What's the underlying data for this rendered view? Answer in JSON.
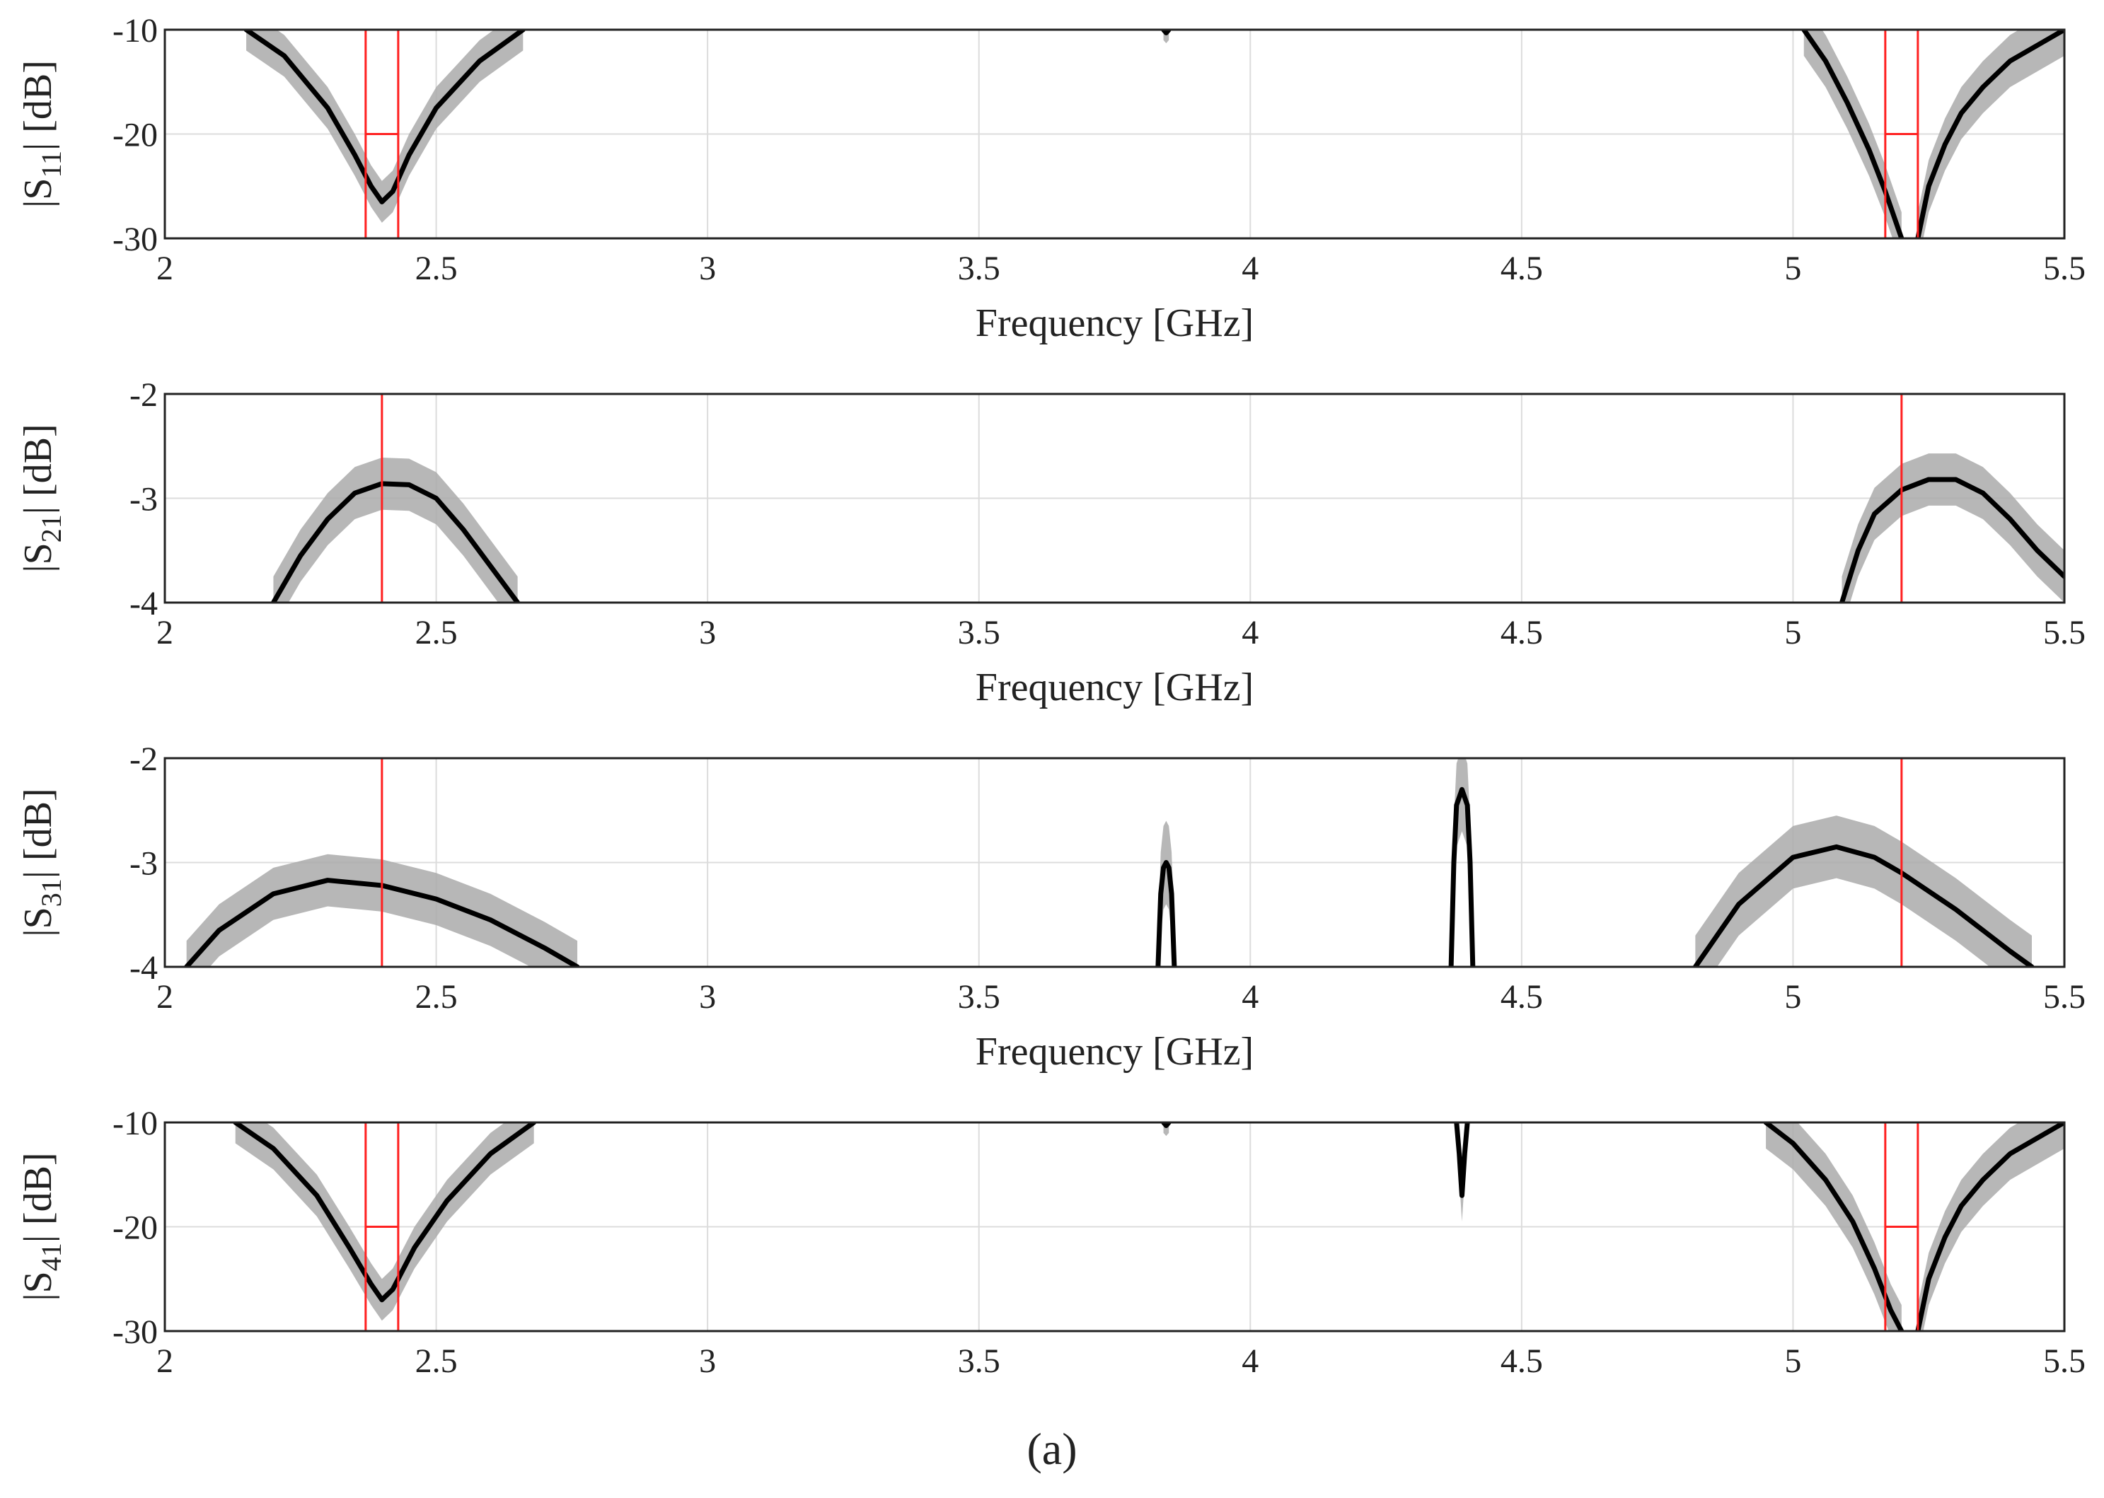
{
  "caption": "(a)",
  "chart_data": [
    {
      "type": "line",
      "id": "s11",
      "ylabel": {
        "pre": "|S",
        "sub": "11",
        "post": "| [dB]"
      },
      "xlabel": "Frequency [GHz]",
      "show_xlabel": true,
      "xlim": [
        2,
        5.5
      ],
      "ylim": [
        -30,
        -10
      ],
      "xticks": [
        2,
        2.5,
        3,
        3.5,
        4,
        4.5,
        5,
        5.5
      ],
      "xtick_labels": [
        "2",
        "2.5",
        "3",
        "3.5",
        "4",
        "4.5",
        "5",
        "5.5"
      ],
      "yticks": [
        -10,
        -20,
        -30
      ],
      "ytick_labels": [
        "-10",
        "-20",
        "-30"
      ],
      "grid": true,
      "series": [
        {
          "name": "mean",
          "band": 2.0,
          "x": [
            2.15,
            2.22,
            2.3,
            2.35,
            2.38,
            2.4,
            2.42,
            2.45,
            2.5,
            2.58,
            2.66
          ],
          "y": [
            -10,
            -12.5,
            -17.5,
            -22,
            -25,
            -26.5,
            -25.5,
            -22,
            -17.5,
            -13,
            -10
          ]
        },
        {
          "name": "mean",
          "band": 2.5,
          "x": [
            5.02,
            5.06,
            5.1,
            5.14,
            5.17,
            5.19,
            5.2
          ],
          "y": [
            -10,
            -13,
            -17,
            -21.5,
            -25.5,
            -28.5,
            -30
          ]
        },
        {
          "name": "mean",
          "band": 2.5,
          "x": [
            5.23,
            5.25,
            5.28,
            5.31,
            5.35,
            5.4,
            5.45,
            5.5
          ],
          "y": [
            -30,
            -25,
            -21,
            -18,
            -15.5,
            -13,
            -11.5,
            -10
          ]
        },
        {
          "name": "mean",
          "band": 1.0,
          "x": [
            3.84,
            3.845,
            3.85
          ],
          "y": [
            -10,
            -10.3,
            -10
          ]
        }
      ],
      "spec_limits": [
        {
          "x": [
            2.37,
            2.37,
            2.43,
            2.43
          ],
          "y": [
            -30,
            -10,
            -10,
            -30
          ]
        },
        {
          "x": [
            2.37,
            2.43
          ],
          "y": [
            -20,
            -20
          ]
        },
        {
          "x": [
            5.17,
            5.17,
            5.23,
            5.23
          ],
          "y": [
            -30,
            -10,
            -10,
            -30
          ]
        },
        {
          "x": [
            5.17,
            5.23
          ],
          "y": [
            -20,
            -20
          ]
        }
      ]
    },
    {
      "type": "line",
      "id": "s21",
      "ylabel": {
        "pre": "|S",
        "sub": "21",
        "post": "| [dB]"
      },
      "xlabel": "Frequency [GHz]",
      "show_xlabel": true,
      "xlim": [
        2,
        5.5
      ],
      "ylim": [
        -4,
        -2
      ],
      "xticks": [
        2,
        2.5,
        3,
        3.5,
        4,
        4.5,
        5,
        5.5
      ],
      "xtick_labels": [
        "2",
        "2.5",
        "3",
        "3.5",
        "4",
        "4.5",
        "5",
        "5.5"
      ],
      "yticks": [
        -2,
        -3,
        -4
      ],
      "ytick_labels": [
        "-2",
        "-3",
        "-4"
      ],
      "grid": true,
      "series": [
        {
          "name": "mean",
          "band": 0.25,
          "x": [
            2.2,
            2.25,
            2.3,
            2.35,
            2.4,
            2.45,
            2.5,
            2.55,
            2.6,
            2.65
          ],
          "y": [
            -4,
            -3.55,
            -3.2,
            -2.95,
            -2.86,
            -2.87,
            -3.0,
            -3.3,
            -3.65,
            -4
          ]
        },
        {
          "name": "mean",
          "band": 0.25,
          "x": [
            5.09,
            5.12,
            5.15,
            5.2,
            5.25,
            5.3,
            5.35,
            5.4,
            5.45,
            5.5
          ],
          "y": [
            -4,
            -3.5,
            -3.15,
            -2.92,
            -2.82,
            -2.82,
            -2.95,
            -3.2,
            -3.5,
            -3.75
          ]
        }
      ],
      "spec_limits": [
        {
          "x": [
            2.4,
            2.4
          ],
          "y": [
            -4,
            -2
          ]
        },
        {
          "x": [
            5.2,
            5.2
          ],
          "y": [
            -4,
            -2
          ]
        }
      ]
    },
    {
      "type": "line",
      "id": "s31",
      "ylabel": {
        "pre": "|S",
        "sub": "31",
        "post": "| [dB]"
      },
      "xlabel": "Frequency [GHz]",
      "show_xlabel": true,
      "xlim": [
        2,
        5.5
      ],
      "ylim": [
        -4,
        -2
      ],
      "xticks": [
        2,
        2.5,
        3,
        3.5,
        4,
        4.5,
        5,
        5.5
      ],
      "xtick_labels": [
        "2",
        "2.5",
        "3",
        "3.5",
        "4",
        "4.5",
        "5",
        "5.5"
      ],
      "yticks": [
        -2,
        -3,
        -4
      ],
      "ytick_labels": [
        "-2",
        "-3",
        "-4"
      ],
      "grid": true,
      "series": [
        {
          "name": "mean",
          "band": 0.25,
          "x": [
            2.04,
            2.1,
            2.2,
            2.3,
            2.4,
            2.5,
            2.6,
            2.7,
            2.76
          ],
          "y": [
            -4,
            -3.65,
            -3.3,
            -3.17,
            -3.22,
            -3.35,
            -3.55,
            -3.82,
            -4
          ]
        },
        {
          "name": "mean",
          "band": 0.4,
          "x": [
            3.83,
            3.835,
            3.84,
            3.845,
            3.85,
            3.855,
            3.86
          ],
          "y": [
            -4,
            -3.3,
            -3.05,
            -3.0,
            -3.05,
            -3.3,
            -4
          ]
        },
        {
          "name": "mean",
          "band": 0.4,
          "x": [
            4.37,
            4.375,
            4.38,
            4.39,
            4.4,
            4.405,
            4.41
          ],
          "y": [
            -4,
            -3.0,
            -2.45,
            -2.3,
            -2.45,
            -3.0,
            -4
          ]
        },
        {
          "name": "mean",
          "band": 0.3,
          "x": [
            4.82,
            4.9,
            5.0,
            5.08,
            5.15,
            5.2,
            5.3,
            5.4,
            5.44
          ],
          "y": [
            -4,
            -3.4,
            -2.95,
            -2.85,
            -2.95,
            -3.1,
            -3.45,
            -3.85,
            -4
          ]
        }
      ],
      "spec_limits": [
        {
          "x": [
            2.4,
            2.4
          ],
          "y": [
            -4,
            -2
          ]
        },
        {
          "x": [
            5.2,
            5.2
          ],
          "y": [
            -4,
            -2
          ]
        }
      ]
    },
    {
      "type": "line",
      "id": "s41",
      "ylabel": {
        "pre": "|S",
        "sub": "41",
        "post": "| [dB]"
      },
      "xlabel": "Frequency [GHz]",
      "show_xlabel": false,
      "xlim": [
        2,
        5.5
      ],
      "ylim": [
        -30,
        -10
      ],
      "xticks": [
        2,
        2.5,
        3,
        3.5,
        4,
        4.5,
        5,
        5.5
      ],
      "xtick_labels": [
        "2",
        "2.5",
        "3",
        "3.5",
        "4",
        "4.5",
        "5",
        "5.5"
      ],
      "yticks": [
        -10,
        -20,
        -30
      ],
      "ytick_labels": [
        "-10",
        "-20",
        "-30"
      ],
      "grid": true,
      "series": [
        {
          "name": "mean",
          "band": 2.0,
          "x": [
            2.13,
            2.2,
            2.28,
            2.34,
            2.38,
            2.4,
            2.42,
            2.46,
            2.52,
            2.6,
            2.68
          ],
          "y": [
            -10,
            -12.5,
            -17,
            -22,
            -25.5,
            -27,
            -26,
            -22,
            -17.5,
            -13,
            -10
          ]
        },
        {
          "name": "mean",
          "band": 2.5,
          "x": [
            4.95,
            5.0,
            5.06,
            5.11,
            5.15,
            5.18,
            5.2
          ],
          "y": [
            -10,
            -12,
            -15.5,
            -19.5,
            -24,
            -28,
            -30
          ]
        },
        {
          "name": "mean",
          "band": 2.5,
          "x": [
            5.23,
            5.25,
            5.28,
            5.31,
            5.35,
            5.4,
            5.45,
            5.5
          ],
          "y": [
            -30,
            -25,
            -21,
            -18,
            -15.5,
            -13,
            -11.5,
            -10
          ]
        },
        {
          "name": "mean",
          "band": 1.0,
          "x": [
            3.84,
            3.845,
            3.85
          ],
          "y": [
            -10,
            -10.3,
            -10
          ]
        },
        {
          "name": "mean",
          "band": 2.5,
          "x": [
            4.38,
            4.385,
            4.39,
            4.395,
            4.4
          ],
          "y": [
            -10,
            -13,
            -17,
            -13,
            -10
          ]
        }
      ],
      "spec_limits": [
        {
          "x": [
            2.37,
            2.37,
            2.43,
            2.43
          ],
          "y": [
            -30,
            -10,
            -10,
            -30
          ]
        },
        {
          "x": [
            2.37,
            2.43
          ],
          "y": [
            -20,
            -20
          ]
        },
        {
          "x": [
            5.17,
            5.17,
            5.23,
            5.23
          ],
          "y": [
            -30,
            -10,
            -10,
            -30
          ]
        },
        {
          "x": [
            5.17,
            5.23
          ],
          "y": [
            -20,
            -20
          ]
        }
      ]
    }
  ]
}
